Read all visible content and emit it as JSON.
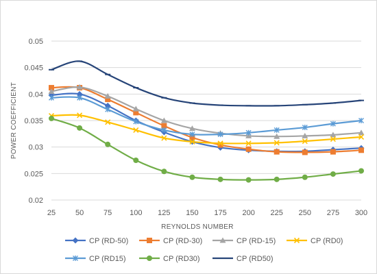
{
  "chart_data": {
    "type": "line",
    "xlabel": "REYNOLDS NUMBER",
    "ylabel": "POWER COEFFICIENT",
    "x": [
      25,
      50,
      75,
      100,
      125,
      150,
      175,
      200,
      225,
      250,
      275,
      300
    ],
    "ylim": [
      0.02,
      0.05
    ],
    "yticks": [
      "0.02",
      "0.025",
      "0.03",
      "0.035",
      "0.04",
      "0.045",
      "0.05"
    ],
    "grid": "horizontal",
    "legend_position": "bottom",
    "series": [
      {
        "name": "CP (RD-50)",
        "color": "#4472c4",
        "marker": "diamond",
        "values": [
          0.0398,
          0.04,
          0.0378,
          0.035,
          0.0328,
          0.031,
          0.0299,
          0.0294,
          0.0292,
          0.0292,
          0.0295,
          0.0298
        ]
      },
      {
        "name": "CP (RD-30)",
        "color": "#ed7d31",
        "marker": "square",
        "values": [
          0.0412,
          0.0412,
          0.039,
          0.0365,
          0.034,
          0.0318,
          0.0304,
          0.0296,
          0.0291,
          0.029,
          0.0291,
          0.0294
        ]
      },
      {
        "name": "CP (RD-15)",
        "color": "#a5a5a5",
        "marker": "triangle",
        "values": [
          0.0405,
          0.0413,
          0.0396,
          0.0372,
          0.035,
          0.0335,
          0.0326,
          0.0321,
          0.032,
          0.0321,
          0.0323,
          0.0327
        ]
      },
      {
        "name": "CP (RD0)",
        "color": "#ffc000",
        "marker": "x",
        "values": [
          0.0359,
          0.036,
          0.0347,
          0.0332,
          0.0317,
          0.031,
          0.0307,
          0.0307,
          0.0308,
          0.0311,
          0.0315,
          0.0319
        ]
      },
      {
        "name": "CP (RD15)",
        "color": "#5b9bd5",
        "marker": "star",
        "values": [
          0.0393,
          0.0393,
          0.0371,
          0.0348,
          0.0332,
          0.0324,
          0.0324,
          0.0327,
          0.0332,
          0.0337,
          0.0344,
          0.035
        ]
      },
      {
        "name": "CP (RD30)",
        "color": "#70ad47",
        "marker": "circle",
        "values": [
          0.0354,
          0.0336,
          0.0305,
          0.0275,
          0.0254,
          0.0243,
          0.0239,
          0.0238,
          0.0239,
          0.0243,
          0.0249,
          0.0255
        ]
      },
      {
        "name": "CP (RD50)",
        "color": "#264478",
        "marker": "dash",
        "values": [
          0.0446,
          0.0462,
          0.0437,
          0.0412,
          0.0393,
          0.0383,
          0.0379,
          0.0378,
          0.0378,
          0.038,
          0.0383,
          0.0388
        ]
      }
    ]
  }
}
